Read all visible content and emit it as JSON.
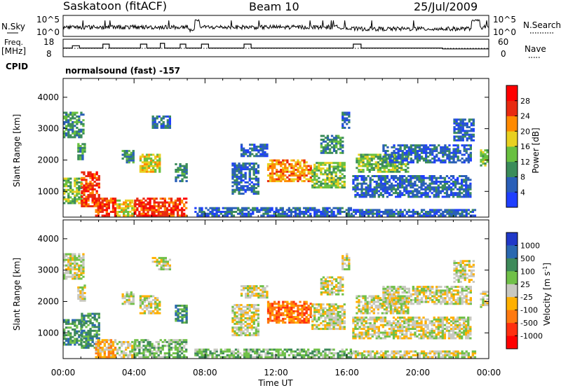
{
  "chart_data": {
    "type": "heatmap",
    "station": "Saskatoon (fitACF)",
    "beam": "Beam 10",
    "date": "25/Jul/2009",
    "cpid_label": "CPID",
    "cpid_text": "normalsound (fast) -157",
    "nsky": {
      "label": "N.Sky",
      "ticks": [
        "10^5",
        "10^0"
      ],
      "search_label": "N.Search",
      "search_ticks": [
        "10^5",
        "10^0"
      ]
    },
    "freq": {
      "label_line1": "Freq.",
      "label_line2": "[MHz]",
      "ticks": [
        "18",
        "8"
      ],
      "nave_label": "Nave",
      "nave_ticks": [
        "60",
        "0"
      ],
      "steps": [
        [
          0,
          0.2
        ],
        [
          1.3,
          0.2
        ],
        [
          1.3,
          0.35
        ],
        [
          2.3,
          0.35
        ],
        [
          2.3,
          0.2
        ],
        [
          5.6,
          0.2
        ],
        [
          5.6,
          0.45
        ],
        [
          6.5,
          0.45
        ],
        [
          6.5,
          0.2
        ],
        [
          10.9,
          0.2
        ],
        [
          10.9,
          0.45
        ],
        [
          11.8,
          0.45
        ],
        [
          11.8,
          0.2
        ],
        [
          13.7,
          0.2
        ],
        [
          13.7,
          0.5
        ],
        [
          14.3,
          0.5
        ],
        [
          14.3,
          0.2
        ],
        [
          16.5,
          0.2
        ],
        [
          16.5,
          0.45
        ],
        [
          17.3,
          0.45
        ],
        [
          17.3,
          0.2
        ],
        [
          19.5,
          0.2
        ],
        [
          19.5,
          0.45
        ],
        [
          20.5,
          0.45
        ],
        [
          20.5,
          0.2
        ],
        [
          25.5,
          0.2
        ],
        [
          25.5,
          0.45
        ],
        [
          26.5,
          0.45
        ],
        [
          26.5,
          0.2
        ],
        [
          40.9,
          0.2
        ],
        [
          40.9,
          0.45
        ],
        [
          42,
          0.45
        ],
        [
          42,
          0.2
        ],
        [
          53.5,
          0.2
        ],
        [
          53.5,
          0.15
        ],
        [
          60,
          0.15
        ]
      ]
    },
    "x_axis": {
      "label": "Time UT",
      "range_hours": [
        0,
        24
      ],
      "ticks": [
        "00:00",
        "04:00",
        "08:00",
        "12:00",
        "16:00",
        "20:00",
        "00:00"
      ]
    },
    "y_axis": {
      "label": "Slant Range [km]",
      "range_km": [
        180,
        4600
      ],
      "ticks": [
        1000,
        2000,
        3000,
        4000
      ]
    },
    "power_scale": {
      "label": "Power [dB]",
      "ticks": [
        "4",
        "8",
        "12",
        "16",
        "20",
        "24",
        "28"
      ],
      "colors": [
        "#1f3fff",
        "#2a5fb8",
        "#3b8c5a",
        "#69c040",
        "#e8d020",
        "#ff8a00",
        "#e82a10",
        "#ff0000"
      ]
    },
    "velocity_scale": {
      "label": "Velocity [m s",
      "label_sup": "-1",
      "label_end": "]",
      "ticks": [
        "1000",
        "500",
        "100",
        "25",
        "-25",
        "-100",
        "-500",
        "-1000"
      ],
      "colors": [
        "#2038c8",
        "#2a68b0",
        "#3e8a5a",
        "#70c048",
        "#c8c8c0",
        "#ffb000",
        "#ff7a10",
        "#ff3010",
        "#ff0000"
      ]
    },
    "echo_regions": [
      {
        "t": [
          0.0,
          1.1
        ],
        "r": [
          2700,
          3500
        ],
        "p": 2,
        "v": 4
      },
      {
        "t": [
          0.8,
          1.2
        ],
        "r": [
          2000,
          2500
        ],
        "p": 2,
        "v": 4
      },
      {
        "t": [
          0.0,
          1.0
        ],
        "r": [
          600,
          1400
        ],
        "p": 3,
        "v": 2
      },
      {
        "t": [
          1.0,
          2.0
        ],
        "r": [
          500,
          1600
        ],
        "p": 6,
        "v": 2
      },
      {
        "t": [
          1.8,
          3.0
        ],
        "r": [
          200,
          800
        ],
        "p": 6,
        "v": 5
      },
      {
        "t": [
          3.0,
          4.0
        ],
        "r": [
          200,
          700
        ],
        "p": 4,
        "v": 4
      },
      {
        "t": [
          3.3,
          4.0
        ],
        "r": [
          1900,
          2300
        ],
        "p": 2,
        "v": 4
      },
      {
        "t": [
          4.0,
          7.0
        ],
        "r": [
          200,
          800
        ],
        "p": 6,
        "v": 3
      },
      {
        "t": [
          4.3,
          5.5
        ],
        "r": [
          1600,
          2200
        ],
        "p": 4,
        "v": 4
      },
      {
        "t": [
          5.0,
          6.0
        ],
        "r": [
          3000,
          3400
        ],
        "p": 1,
        "v": 4
      },
      {
        "t": [
          6.3,
          7.0
        ],
        "r": [
          1300,
          1900
        ],
        "p": 2,
        "v": 2
      },
      {
        "t": [
          7.4,
          16.2
        ],
        "r": [
          200,
          500
        ],
        "p": 1,
        "v": 3
      },
      {
        "t": [
          9.5,
          11.0
        ],
        "r": [
          900,
          1900
        ],
        "p": 1,
        "v": 4
      },
      {
        "t": [
          10.0,
          11.5
        ],
        "r": [
          2100,
          2500
        ],
        "p": 1,
        "v": 4
      },
      {
        "t": [
          11.5,
          14.0
        ],
        "r": [
          1300,
          2000
        ],
        "p": 5,
        "v": 6
      },
      {
        "t": [
          14.0,
          15.8
        ],
        "r": [
          1100,
          1900
        ],
        "p": 3,
        "v": 4
      },
      {
        "t": [
          14.5,
          15.8
        ],
        "r": [
          2200,
          2800
        ],
        "p": 2,
        "v": 4
      },
      {
        "t": [
          15.7,
          16.1
        ],
        "r": [
          3000,
          3500
        ],
        "p": 1,
        "v": 4
      },
      {
        "t": [
          16.2,
          23.2
        ],
        "r": [
          200,
          400
        ],
        "p": 1,
        "v": 4
      },
      {
        "t": [
          16.3,
          23.0
        ],
        "r": [
          800,
          1500
        ],
        "p": 1,
        "v": 4
      },
      {
        "t": [
          16.5,
          19.5
        ],
        "r": [
          1600,
          2200
        ],
        "p": 3,
        "v": 4
      },
      {
        "t": [
          18.0,
          23.0
        ],
        "r": [
          1900,
          2500
        ],
        "p": 1,
        "v": 4
      },
      {
        "t": [
          22.0,
          23.2
        ],
        "r": [
          2600,
          3300
        ],
        "p": 1,
        "v": 4
      },
      {
        "t": [
          23.5,
          23.9
        ],
        "r": [
          1800,
          2300
        ],
        "p": 3,
        "v": 4
      }
    ]
  }
}
